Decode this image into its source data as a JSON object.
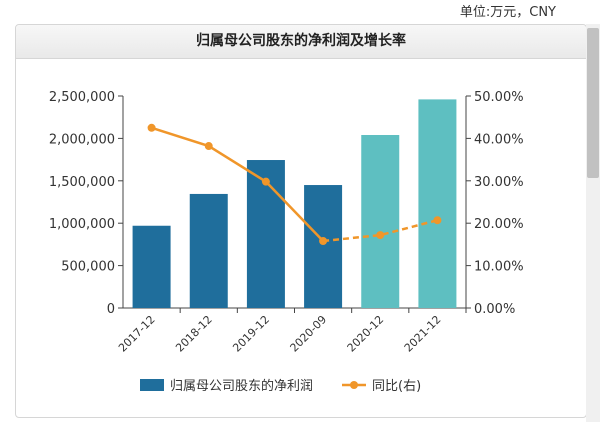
{
  "unit_label": "单位:万元，CNY",
  "chart_data": {
    "type": "bar",
    "title": "归属母公司股东的净利润及增长率",
    "categories": [
      "2017-12",
      "2018-12",
      "2019-12",
      "2020-09",
      "2020-12",
      "2021-12"
    ],
    "series": [
      {
        "name": "归属母公司股东的净利润",
        "type": "bar",
        "axis": "left",
        "values": [
          970000,
          1345000,
          1745000,
          1450000,
          2040000,
          2460000
        ],
        "colors": [
          "#1f6e9c",
          "#1f6e9c",
          "#1f6e9c",
          "#1f6e9c",
          "#5ebfc1",
          "#5ebfc1"
        ]
      },
      {
        "name": "同比(右)",
        "type": "line",
        "axis": "right",
        "values": [
          42.5,
          38.2,
          29.8,
          15.8,
          17.2,
          20.7
        ],
        "color": "#f0962a",
        "dashed_from_index": 3
      }
    ],
    "y_left": {
      "ylim": [
        0,
        2500000
      ],
      "ticks": [
        "0",
        "500,000",
        "1,000,000",
        "1,500,000",
        "2,000,000",
        "2,500,000"
      ]
    },
    "y_right": {
      "ylim": [
        0,
        50
      ],
      "ticks": [
        "0.00%",
        "10.00%",
        "20.00%",
        "30.00%",
        "40.00%",
        "50.00%"
      ]
    },
    "grid": false,
    "legend_position": "bottom",
    "legend": [
      {
        "label": "归属母公司股东的净利润",
        "marker": "bar",
        "color": "#1f6e9c"
      },
      {
        "label": "同比(右)",
        "marker": "line",
        "color": "#f0962a"
      }
    ]
  }
}
